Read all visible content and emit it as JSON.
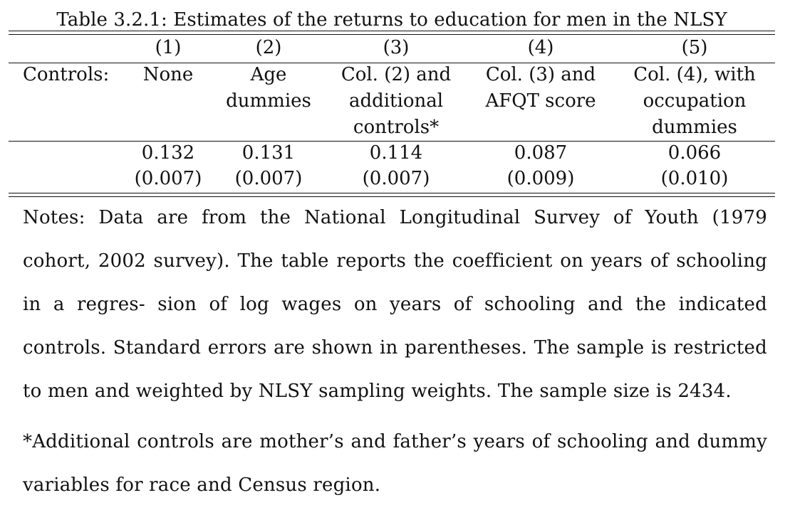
{
  "caption": "Table 3.2.1: Estimates of the returns to education for men in the NLSY",
  "table": {
    "row_label": "Controls:",
    "columns": [
      {
        "number": "(1)",
        "controls": [
          "None"
        ],
        "estimate": "0.132",
        "se": "(0.007)"
      },
      {
        "number": "(2)",
        "controls": [
          "Age",
          "dummies"
        ],
        "estimate": "0.131",
        "se": "(0.007)"
      },
      {
        "number": "(3)",
        "controls": [
          "Col. (2) and",
          "additional",
          "controls*"
        ],
        "estimate": "0.114",
        "se": "(0.007)"
      },
      {
        "number": "(4)",
        "controls": [
          "Col. (3) and",
          "AFQT score"
        ],
        "estimate": "0.087",
        "se": "(0.009)"
      },
      {
        "number": "(5)",
        "controls": [
          "Col. (4), with",
          "occupation",
          "dummies"
        ],
        "estimate": "0.066",
        "se": "(0.010)"
      }
    ]
  },
  "notes": "Notes: Data are from the National Longitudinal Survey of Youth (1979 cohort, 2002 survey). The table reports the coefficient on years of schooling in a regres- sion of log wages on years of schooling and the indicated controls. Standard errors are shown in parentheses. The sample is restricted to men and weighted by NLSY sampling weights. The sample size is 2434.",
  "footnote": "*Additional controls are mother’s and father’s years of schooling and dummy variables for race and Census region."
}
